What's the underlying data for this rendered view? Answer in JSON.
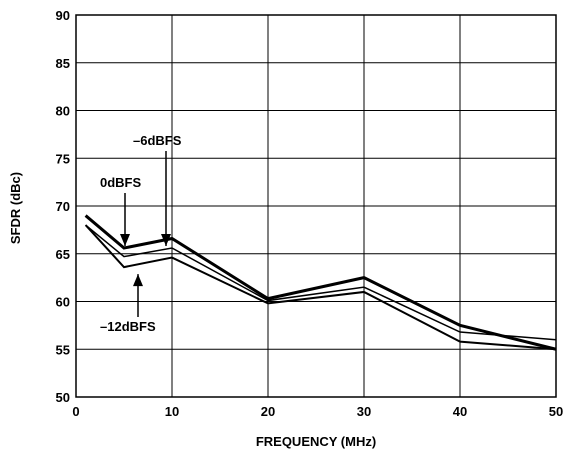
{
  "chart_data": {
    "type": "line",
    "xlabel": "FREQUENCY (MHz)",
    "ylabel": "SFDR (dBc)",
    "xlim": [
      0,
      50
    ],
    "ylim": [
      50,
      90
    ],
    "xticks": [
      0,
      10,
      20,
      30,
      40,
      50
    ],
    "yticks": [
      50,
      55,
      60,
      65,
      70,
      75,
      80,
      85,
      90
    ],
    "grid": true,
    "series": [
      {
        "name": "0dBFS",
        "x": [
          1,
          5,
          10,
          20,
          30,
          40,
          50
        ],
        "y": [
          69.0,
          65.6,
          66.6,
          60.3,
          62.5,
          57.5,
          55.0
        ]
      },
      {
        "name": "–6dBFS",
        "x": [
          1,
          5,
          10,
          20,
          30,
          40,
          50
        ],
        "y": [
          68.0,
          64.7,
          65.6,
          60.1,
          61.5,
          56.8,
          56.0
        ]
      },
      {
        "name": "–12dBFS",
        "x": [
          1,
          5,
          10,
          20,
          30,
          40,
          50
        ],
        "y": [
          68.0,
          63.6,
          64.6,
          59.8,
          61.0,
          55.8,
          55.0
        ]
      }
    ],
    "annotations": [
      {
        "text": "–6dBFS",
        "series": 1
      },
      {
        "text": "0dBFS",
        "series": 0
      },
      {
        "text": "–12dBFS",
        "series": 2
      }
    ]
  }
}
